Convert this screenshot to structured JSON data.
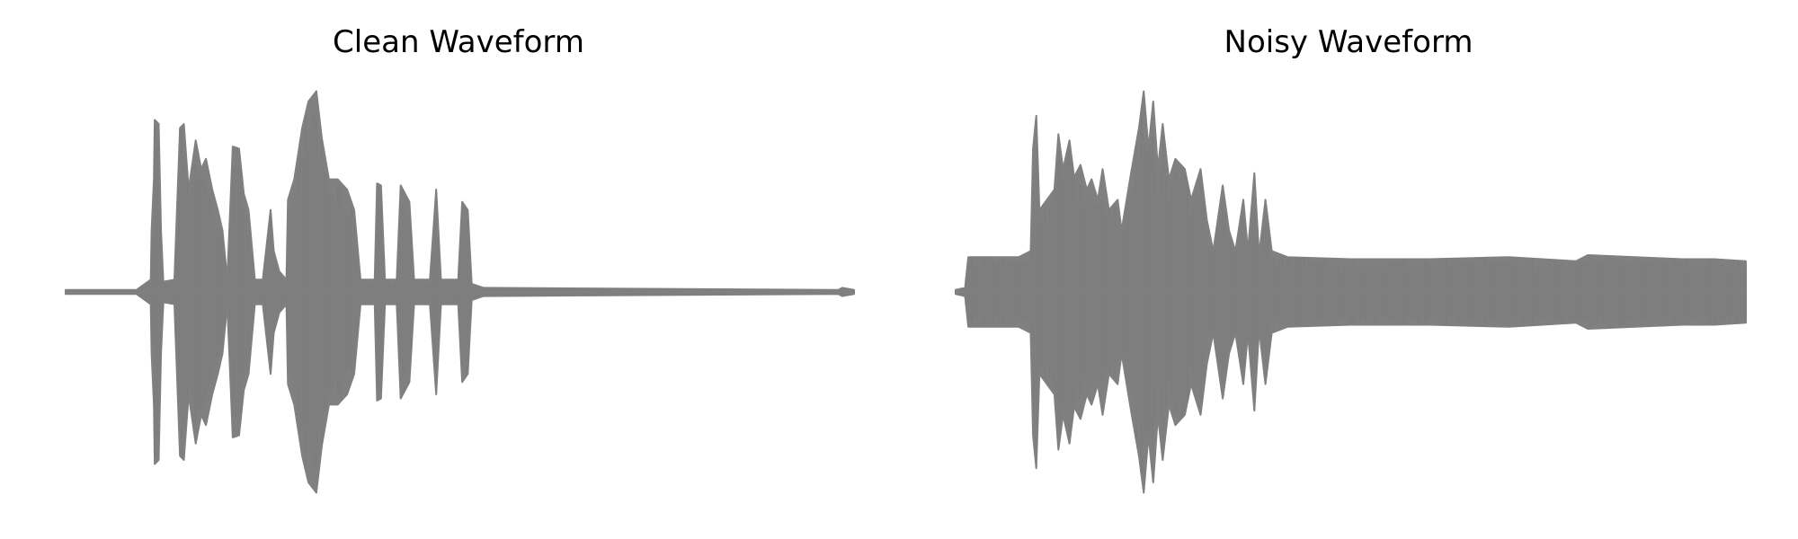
{
  "chart_data": [
    {
      "type": "area",
      "title": "Clean Waveform",
      "color": "#808080",
      "axes_visible": false,
      "ylim": [
        -1,
        1
      ],
      "envelope": [
        [
          0.0,
          0.01
        ],
        [
          0.09,
          0.01
        ],
        [
          0.108,
          0.06
        ],
        [
          0.109,
          0.3
        ],
        [
          0.112,
          0.55
        ],
        [
          0.113,
          0.84
        ],
        [
          0.118,
          0.82
        ],
        [
          0.121,
          0.3
        ],
        [
          0.124,
          0.05
        ],
        [
          0.138,
          0.06
        ],
        [
          0.145,
          0.8
        ],
        [
          0.15,
          0.82
        ],
        [
          0.156,
          0.5
        ],
        [
          0.165,
          0.74
        ],
        [
          0.172,
          0.6
        ],
        [
          0.178,
          0.65
        ],
        [
          0.186,
          0.5
        ],
        [
          0.193,
          0.4
        ],
        [
          0.199,
          0.3
        ],
        [
          0.205,
          0.06
        ],
        [
          0.212,
          0.71
        ],
        [
          0.22,
          0.7
        ],
        [
          0.226,
          0.48
        ],
        [
          0.232,
          0.4
        ],
        [
          0.24,
          0.06
        ],
        [
          0.25,
          0.06
        ],
        [
          0.26,
          0.4
        ],
        [
          0.264,
          0.2
        ],
        [
          0.271,
          0.1
        ],
        [
          0.28,
          0.06
        ],
        [
          0.282,
          0.45
        ],
        [
          0.29,
          0.55
        ],
        [
          0.3,
          0.8
        ],
        [
          0.308,
          0.93
        ],
        [
          0.318,
          0.98
        ],
        [
          0.325,
          0.75
        ],
        [
          0.334,
          0.55
        ],
        [
          0.345,
          0.55
        ],
        [
          0.357,
          0.5
        ],
        [
          0.366,
          0.4
        ],
        [
          0.374,
          0.06
        ],
        [
          0.392,
          0.06
        ],
        [
          0.395,
          0.53
        ],
        [
          0.4,
          0.52
        ],
        [
          0.405,
          0.06
        ],
        [
          0.42,
          0.06
        ],
        [
          0.425,
          0.52
        ],
        [
          0.436,
          0.44
        ],
        [
          0.442,
          0.06
        ],
        [
          0.462,
          0.06
        ],
        [
          0.47,
          0.5
        ],
        [
          0.476,
          0.06
        ],
        [
          0.498,
          0.06
        ],
        [
          0.503,
          0.44
        ],
        [
          0.51,
          0.4
        ],
        [
          0.515,
          0.04
        ],
        [
          0.53,
          0.02
        ],
        [
          0.98,
          0.01
        ],
        [
          0.985,
          0.02
        ],
        [
          1.0,
          0.01
        ]
      ]
    },
    {
      "type": "area",
      "title": "Noisy Waveform",
      "color": "#808080",
      "axes_visible": false,
      "ylim": [
        -1,
        1
      ],
      "envelope": [
        [
          0.0,
          0.01
        ],
        [
          0.012,
          0.02
        ],
        [
          0.016,
          0.17
        ],
        [
          0.08,
          0.17
        ],
        [
          0.095,
          0.2
        ],
        [
          0.098,
          0.7
        ],
        [
          0.102,
          0.86
        ],
        [
          0.106,
          0.4
        ],
        [
          0.125,
          0.5
        ],
        [
          0.13,
          0.77
        ],
        [
          0.136,
          0.6
        ],
        [
          0.144,
          0.74
        ],
        [
          0.15,
          0.56
        ],
        [
          0.158,
          0.62
        ],
        [
          0.166,
          0.5
        ],
        [
          0.172,
          0.55
        ],
        [
          0.18,
          0.45
        ],
        [
          0.186,
          0.6
        ],
        [
          0.194,
          0.4
        ],
        [
          0.205,
          0.45
        ],
        [
          0.21,
          0.3
        ],
        [
          0.222,
          0.58
        ],
        [
          0.232,
          0.8
        ],
        [
          0.238,
          0.98
        ],
        [
          0.244,
          0.7
        ],
        [
          0.25,
          0.93
        ],
        [
          0.256,
          0.6
        ],
        [
          0.262,
          0.82
        ],
        [
          0.27,
          0.55
        ],
        [
          0.278,
          0.65
        ],
        [
          0.29,
          0.6
        ],
        [
          0.298,
          0.45
        ],
        [
          0.31,
          0.6
        ],
        [
          0.318,
          0.35
        ],
        [
          0.326,
          0.2
        ],
        [
          0.338,
          0.52
        ],
        [
          0.346,
          0.3
        ],
        [
          0.354,
          0.2
        ],
        [
          0.364,
          0.45
        ],
        [
          0.37,
          0.2
        ],
        [
          0.378,
          0.58
        ],
        [
          0.384,
          0.18
        ],
        [
          0.392,
          0.45
        ],
        [
          0.4,
          0.2
        ],
        [
          0.42,
          0.17
        ],
        [
          0.5,
          0.16
        ],
        [
          0.6,
          0.16
        ],
        [
          0.7,
          0.17
        ],
        [
          0.785,
          0.15
        ],
        [
          0.8,
          0.18
        ],
        [
          0.86,
          0.17
        ],
        [
          0.92,
          0.16
        ],
        [
          0.96,
          0.16
        ],
        [
          1.0,
          0.15
        ]
      ]
    }
  ]
}
